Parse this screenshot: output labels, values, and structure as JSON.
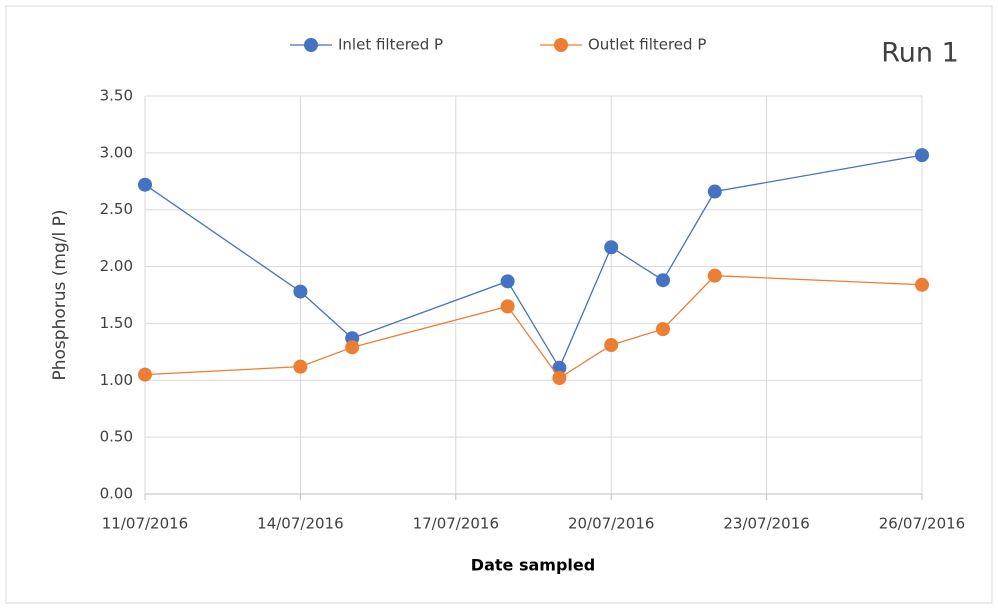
{
  "chart_data": {
    "type": "line",
    "annotation": "Run 1",
    "xlabel": "Date sampled",
    "ylabel": "Phosphorus (mg/l P)",
    "x": [
      "11/07/2016",
      "14/07/2016",
      "15/07/2016",
      "18/07/2016",
      "19/07/2016",
      "20/07/2016",
      "21/07/2016",
      "22/07/2016",
      "26/07/2016"
    ],
    "series": [
      {
        "name": "Inlet filtered P",
        "color": "#4472c4",
        "values": [
          2.72,
          1.78,
          1.37,
          1.87,
          1.11,
          2.17,
          1.88,
          2.66,
          2.98
        ]
      },
      {
        "name": "Outlet filtered P",
        "color": "#ed7d31",
        "values": [
          1.05,
          1.12,
          1.29,
          1.65,
          1.02,
          1.31,
          1.45,
          1.92,
          1.84
        ]
      }
    ],
    "xlim": [
      "11/07/2016",
      "26/07/2016"
    ],
    "xticks": [
      "11/07/2016",
      "14/07/2016",
      "17/07/2016",
      "20/07/2016",
      "23/07/2016",
      "26/07/2016"
    ],
    "ylim": [
      0,
      3.5
    ],
    "yticks": [
      {
        "value": 0,
        "label": "0.00"
      },
      {
        "value": 0.5,
        "label": "0.50"
      },
      {
        "value": 1,
        "label": "1.00"
      },
      {
        "value": 1.5,
        "label": "1.50"
      },
      {
        "value": 2,
        "label": "2.00"
      },
      {
        "value": 2.5,
        "label": "2.50"
      },
      {
        "value": 3,
        "label": "3.00"
      },
      {
        "value": 3.5,
        "label": "3.50"
      }
    ],
    "grid": true,
    "legend": "top"
  }
}
